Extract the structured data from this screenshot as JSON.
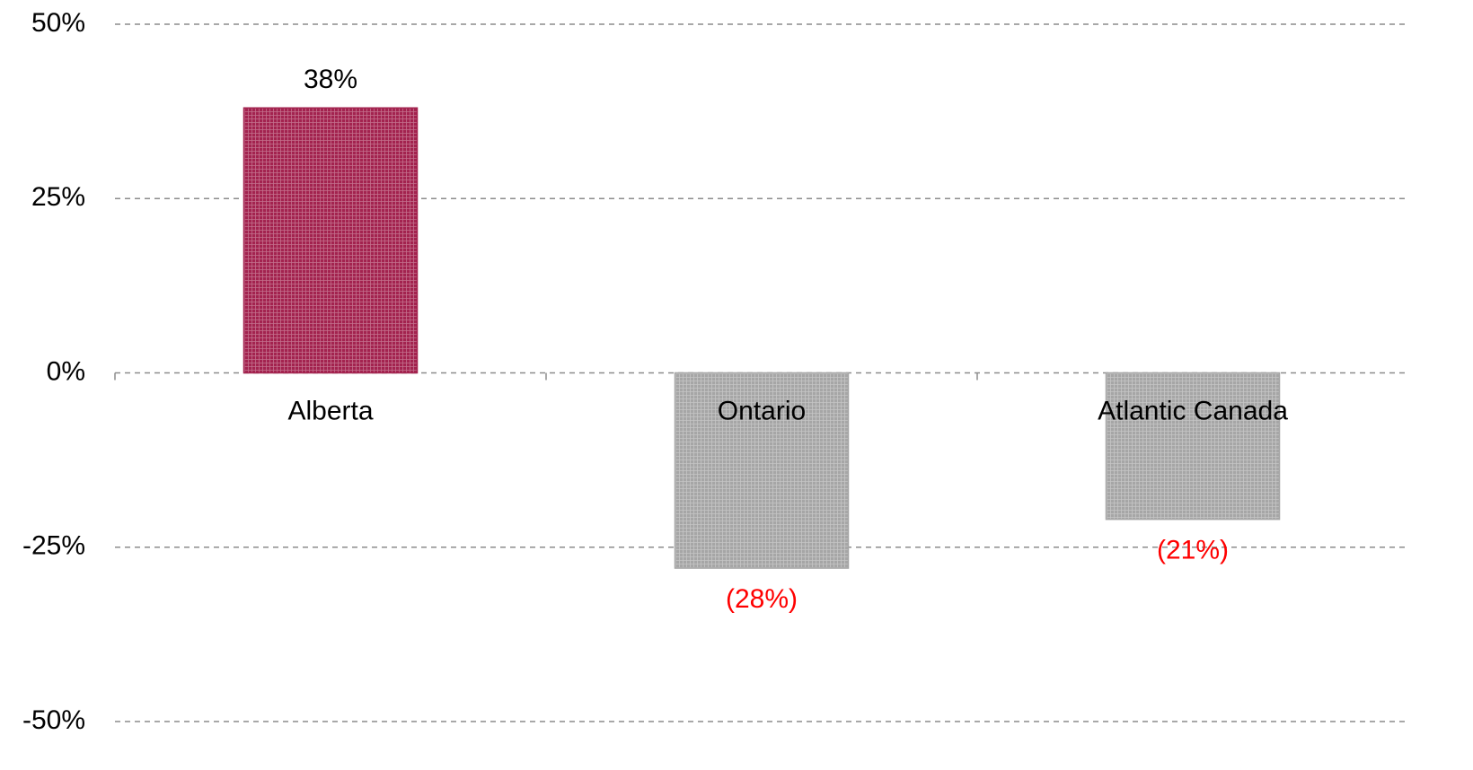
{
  "chart_data": {
    "type": "bar",
    "categories": [
      "Alberta",
      "Ontario",
      "Atlantic Canada"
    ],
    "values": [
      38,
      -28,
      -21
    ],
    "value_labels": [
      "38%",
      "(28%)",
      "(21%)"
    ],
    "colors": [
      "#a3234f",
      "#a6a6a6",
      "#a6a6a6"
    ],
    "negative_label_color": "#ff0000",
    "ylim": [
      -50,
      50
    ],
    "yticks": [
      {
        "value": -50,
        "label": "-50%"
      },
      {
        "value": -25,
        "label": "-25%"
      },
      {
        "value": 0,
        "label": "0%"
      },
      {
        "value": 25,
        "label": "25%"
      },
      {
        "value": 50,
        "label": "50%"
      }
    ],
    "grid": true
  }
}
